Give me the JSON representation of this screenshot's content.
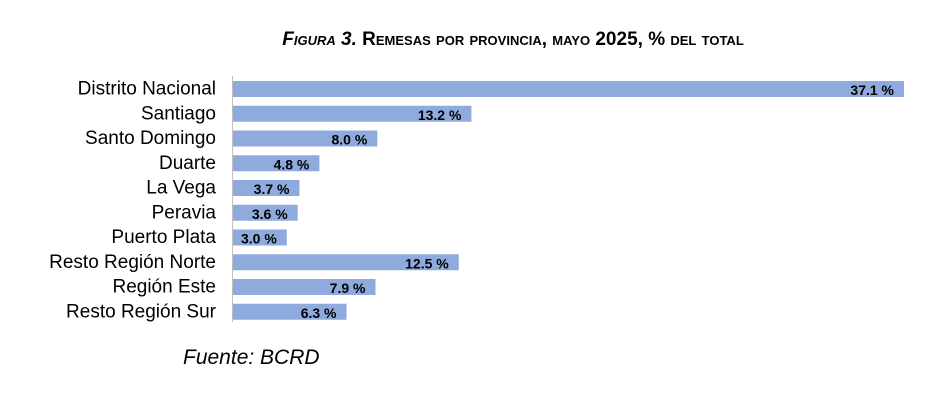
{
  "figure": {
    "title_prefix": "Figura 3.",
    "title_main": "Remesas por provincia, mayo 2025, % del total",
    "source": "Fuente: BCRD"
  },
  "chart_data": {
    "type": "bar",
    "orientation": "horizontal",
    "title": "Figura 3. Remesas por provincia, mayo 2025, % del total",
    "categories": [
      "Distrito Nacional",
      "Santiago",
      "Santo Domingo",
      "Duarte",
      "La Vega",
      "Peravia",
      "Puerto Plata",
      "Resto Región Norte",
      "Región Este",
      "Resto Región Sur"
    ],
    "values": [
      37.1,
      13.2,
      8.0,
      4.8,
      3.7,
      3.6,
      3.0,
      12.5,
      7.9,
      6.3
    ],
    "data_labels": [
      "37.1 %",
      "13.2 %",
      "8.0 %",
      "4.8 %",
      "3.7 %",
      "3.6 %",
      "3.0 %",
      "12.5 %",
      "7.9 %",
      "6.3 %"
    ],
    "bar_color": "#8faadc",
    "xlim": [
      0,
      37.1
    ],
    "grid": false,
    "legend": "none"
  }
}
